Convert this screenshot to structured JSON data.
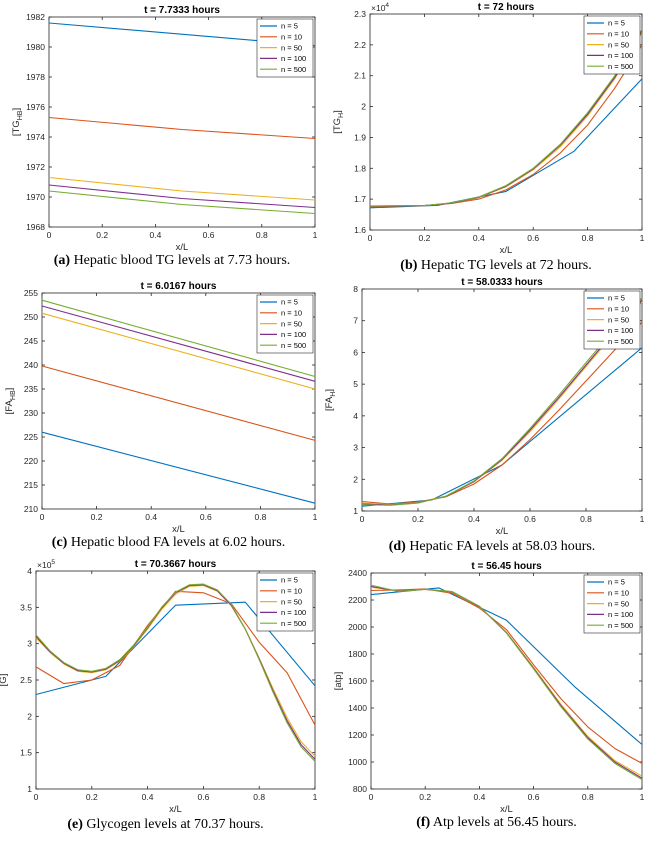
{
  "colors": {
    "n5": "#0072bd",
    "n10": "#d95319",
    "n50": "#edb120",
    "n100": "#7e2f8e",
    "n500": "#77ac30"
  },
  "chart_data": [
    {
      "id": "a",
      "type": "line",
      "title": "t = 7.7333 hours",
      "xlabel": "x/L",
      "ylabel": "[TG_HB]",
      "ylabel_main": "[TG",
      "ylabel_sub": "HB",
      "xlim": [
        0,
        1
      ],
      "ylim": [
        1968,
        1982
      ],
      "xticks": [
        "0",
        "0.2",
        "0.4",
        "0.6",
        "0.8",
        "1"
      ],
      "yticks": [
        "1968",
        "1970",
        "1972",
        "1974",
        "1976",
        "1978",
        "1980",
        "1982"
      ],
      "exponent": "",
      "caption_label": "(a)",
      "caption_text": " Hepatic blood TG levels at 7.73 hours.",
      "legend": [
        "n = 5",
        "n = 10",
        "n = 50",
        "n = 100",
        "n = 500"
      ],
      "series": [
        {
          "name": "n = 5",
          "x": [
            0,
            1
          ],
          "y": [
            1981.6,
            1980.1
          ]
        },
        {
          "name": "n = 10",
          "x": [
            0,
            0.5,
            1
          ],
          "y": [
            1975.3,
            1974.5,
            1973.9
          ]
        },
        {
          "name": "n = 50",
          "x": [
            0,
            0.5,
            1
          ],
          "y": [
            1971.3,
            1970.4,
            1969.8
          ]
        },
        {
          "name": "n = 100",
          "x": [
            0,
            0.5,
            1
          ],
          "y": [
            1970.8,
            1969.9,
            1969.3
          ]
        },
        {
          "name": "n = 500",
          "x": [
            0,
            0.5,
            1
          ],
          "y": [
            1970.4,
            1969.5,
            1968.9
          ]
        }
      ]
    },
    {
      "id": "b",
      "type": "line",
      "title": "t = 72 hours",
      "xlabel": "x/L",
      "ylabel": "[TG_H]",
      "ylabel_main": "[TG",
      "ylabel_sub": "H",
      "xlim": [
        0,
        1
      ],
      "ylim": [
        1.6,
        2.3
      ],
      "xticks": [
        "0",
        "0.2",
        "0.4",
        "0.6",
        "0.8",
        "1"
      ],
      "yticks": [
        "1.6",
        "1.7",
        "1.8",
        "1.9",
        "2",
        "2.1",
        "2.2",
        "2.3"
      ],
      "exponent": "×10",
      "exponent_power": "4",
      "caption_label": "(b)",
      "caption_text": " Hepatic TG levels at 72 hours.",
      "legend": [
        "n = 5",
        "n = 10",
        "n = 50",
        "n = 100",
        "n = 500"
      ],
      "series": [
        {
          "name": "n = 5",
          "x": [
            0,
            0.25,
            0.5,
            0.75,
            1
          ],
          "y": [
            1.672,
            1.68,
            1.725,
            1.855,
            2.09
          ]
        },
        {
          "name": "n = 10",
          "x": [
            0,
            0.2,
            0.3,
            0.4,
            0.5,
            0.6,
            0.7,
            0.8,
            0.9,
            1
          ],
          "y": [
            1.675,
            1.679,
            1.686,
            1.7,
            1.73,
            1.78,
            1.85,
            1.94,
            2.06,
            2.2
          ]
        },
        {
          "name": "n = 50",
          "x": [
            0,
            0.2,
            0.3,
            0.4,
            0.5,
            0.6,
            0.7,
            0.8,
            0.9,
            1
          ],
          "y": [
            1.677,
            1.679,
            1.687,
            1.705,
            1.74,
            1.795,
            1.87,
            1.97,
            2.09,
            2.24
          ]
        },
        {
          "name": "n = 100",
          "x": [
            0,
            0.2,
            0.3,
            0.4,
            0.5,
            0.6,
            0.7,
            0.8,
            0.9,
            1
          ],
          "y": [
            1.677,
            1.679,
            1.687,
            1.706,
            1.742,
            1.798,
            1.875,
            1.975,
            2.095,
            2.245
          ]
        },
        {
          "name": "n = 500",
          "x": [
            0,
            0.2,
            0.3,
            0.4,
            0.5,
            0.6,
            0.7,
            0.8,
            0.9,
            1
          ],
          "y": [
            1.678,
            1.679,
            1.688,
            1.707,
            1.744,
            1.8,
            1.878,
            1.98,
            2.1,
            2.25
          ]
        }
      ]
    },
    {
      "id": "c",
      "type": "line",
      "title": "t = 6.0167 hours",
      "xlabel": "x/L",
      "ylabel": "[FA_HB]",
      "ylabel_main": "[FA",
      "ylabel_sub": "HB",
      "xlim": [
        0,
        1
      ],
      "ylim": [
        210,
        255
      ],
      "xticks": [
        "0",
        "0.2",
        "0.4",
        "0.6",
        "0.8",
        "1"
      ],
      "yticks": [
        "210",
        "215",
        "220",
        "225",
        "230",
        "235",
        "240",
        "245",
        "250",
        "255"
      ],
      "exponent": "",
      "caption_label": "(c)",
      "caption_text": " Hepatic blood FA levels at 6.02 hours.",
      "legend": [
        "n = 5",
        "n = 10",
        "n = 50",
        "n = 100",
        "n = 500"
      ],
      "series": [
        {
          "name": "n = 5",
          "x": [
            0,
            1
          ],
          "y": [
            226,
            211.2
          ]
        },
        {
          "name": "n = 10",
          "x": [
            0,
            1
          ],
          "y": [
            239.8,
            224.3
          ]
        },
        {
          "name": "n = 50",
          "x": [
            0,
            1
          ],
          "y": [
            250.8,
            235.0
          ]
        },
        {
          "name": "n = 100",
          "x": [
            0,
            1
          ],
          "y": [
            252.3,
            236.6
          ]
        },
        {
          "name": "n = 500",
          "x": [
            0,
            1
          ],
          "y": [
            253.5,
            237.6
          ]
        }
      ]
    },
    {
      "id": "d",
      "type": "line",
      "title": "t = 58.0333 hours",
      "xlabel": "x/L",
      "ylabel": "[FA_H]",
      "ylabel_main": "[FA",
      "ylabel_sub": "H",
      "xlim": [
        0,
        1
      ],
      "ylim": [
        1,
        8
      ],
      "xticks": [
        "0",
        "0.2",
        "0.4",
        "0.6",
        "0.8",
        "1"
      ],
      "yticks": [
        "1",
        "2",
        "3",
        "4",
        "5",
        "6",
        "7",
        "8"
      ],
      "exponent": "",
      "caption_label": "(d)",
      "caption_text": " Hepatic FA levels at 58.03 hours.",
      "legend": [
        "n = 5",
        "n = 10",
        "n = 50",
        "n = 100",
        "n = 500"
      ],
      "series": [
        {
          "name": "n = 5",
          "x": [
            0,
            0.25,
            0.5,
            0.75,
            1
          ],
          "y": [
            1.15,
            1.35,
            2.45,
            4.3,
            6.15
          ]
        },
        {
          "name": "n = 10",
          "x": [
            0,
            0.1,
            0.2,
            0.3,
            0.4,
            0.5,
            0.6,
            0.7,
            0.8,
            0.9,
            1
          ],
          "y": [
            1.3,
            1.22,
            1.28,
            1.45,
            1.85,
            2.45,
            3.25,
            4.15,
            5.1,
            6.05,
            6.95
          ]
        },
        {
          "name": "n = 50",
          "x": [
            0,
            0.1,
            0.2,
            0.3,
            0.4,
            0.5,
            0.6,
            0.7,
            0.8,
            0.9,
            1
          ],
          "y": [
            1.25,
            1.2,
            1.27,
            1.47,
            1.92,
            2.6,
            3.5,
            4.5,
            5.55,
            6.6,
            7.6
          ]
        },
        {
          "name": "n = 100",
          "x": [
            0,
            0.1,
            0.2,
            0.3,
            0.4,
            0.5,
            0.6,
            0.7,
            0.8,
            0.9,
            1
          ],
          "y": [
            1.22,
            1.19,
            1.26,
            1.46,
            1.93,
            2.62,
            3.55,
            4.55,
            5.6,
            6.65,
            7.65
          ]
        },
        {
          "name": "n = 500",
          "x": [
            0,
            0.1,
            0.2,
            0.3,
            0.4,
            0.5,
            0.6,
            0.7,
            0.8,
            0.9,
            1
          ],
          "y": [
            1.2,
            1.18,
            1.25,
            1.47,
            1.95,
            2.65,
            3.6,
            4.62,
            5.68,
            6.72,
            7.72
          ]
        }
      ]
    },
    {
      "id": "e",
      "type": "line",
      "title": "t = 70.3667 hours",
      "xlabel": "x/L",
      "ylabel": "[G]",
      "ylabel_main": "[G]",
      "ylabel_sub": "",
      "xlim": [
        0,
        1
      ],
      "ylim": [
        1,
        4
      ],
      "xticks": [
        "0",
        "0.2",
        "0.4",
        "0.6",
        "0.8",
        "1"
      ],
      "yticks": [
        "1",
        "1.5",
        "2",
        "2.5",
        "3",
        "3.5",
        "4"
      ],
      "exponent": "×10",
      "exponent_power": "5",
      "caption_label": "(e)",
      "caption_text": " Glycogen levels at 70.37 hours.",
      "legend": [
        "n = 5",
        "n = 10",
        "n = 50",
        "n = 100",
        "n = 500"
      ],
      "series": [
        {
          "name": "n = 5",
          "x": [
            0,
            0.25,
            0.5,
            0.75,
            1
          ],
          "y": [
            2.3,
            2.55,
            3.53,
            3.57,
            2.42
          ]
        },
        {
          "name": "n = 10",
          "x": [
            0,
            0.1,
            0.2,
            0.3,
            0.4,
            0.5,
            0.6,
            0.7,
            0.8,
            0.9,
            1
          ],
          "y": [
            2.68,
            2.45,
            2.5,
            2.7,
            3.25,
            3.72,
            3.7,
            3.55,
            3.02,
            2.6,
            1.88
          ]
        },
        {
          "name": "n = 50",
          "x": [
            0,
            0.05,
            0.1,
            0.15,
            0.2,
            0.25,
            0.3,
            0.35,
            0.4,
            0.45,
            0.5,
            0.55,
            0.6,
            0.65,
            0.7,
            0.75,
            0.8,
            0.85,
            0.9,
            0.95,
            1
          ],
          "y": [
            3.08,
            2.88,
            2.72,
            2.62,
            2.6,
            2.64,
            2.76,
            2.96,
            3.2,
            3.47,
            3.68,
            3.79,
            3.8,
            3.72,
            3.52,
            3.2,
            2.8,
            2.38,
            1.98,
            1.65,
            1.45
          ]
        },
        {
          "name": "n = 100",
          "x": [
            0,
            0.05,
            0.1,
            0.15,
            0.2,
            0.25,
            0.3,
            0.35,
            0.4,
            0.45,
            0.5,
            0.55,
            0.6,
            0.65,
            0.7,
            0.75,
            0.8,
            0.85,
            0.9,
            0.95,
            1
          ],
          "y": [
            3.1,
            2.89,
            2.73,
            2.63,
            2.61,
            2.65,
            2.77,
            2.97,
            3.22,
            3.49,
            3.7,
            3.8,
            3.81,
            3.73,
            3.53,
            3.2,
            2.79,
            2.35,
            1.94,
            1.61,
            1.41
          ]
        },
        {
          "name": "n = 500",
          "x": [
            0,
            0.05,
            0.1,
            0.15,
            0.2,
            0.25,
            0.3,
            0.35,
            0.4,
            0.45,
            0.5,
            0.55,
            0.6,
            0.65,
            0.7,
            0.75,
            0.8,
            0.85,
            0.9,
            0.95,
            1
          ],
          "y": [
            3.12,
            2.9,
            2.74,
            2.64,
            2.62,
            2.66,
            2.78,
            2.98,
            3.23,
            3.5,
            3.71,
            3.81,
            3.82,
            3.74,
            3.54,
            3.2,
            2.78,
            2.33,
            1.91,
            1.58,
            1.38
          ]
        }
      ]
    },
    {
      "id": "f",
      "type": "line",
      "title": "t = 56.45 hours",
      "xlabel": "x/L",
      "ylabel": "[atp]",
      "ylabel_main": "[atp]",
      "ylabel_sub": "",
      "xlim": [
        0,
        1
      ],
      "ylim": [
        800,
        2400
      ],
      "xticks": [
        "0",
        "0.2",
        "0.4",
        "0.6",
        "0.8",
        "1"
      ],
      "yticks": [
        "800",
        "1000",
        "1200",
        "1400",
        "1600",
        "1800",
        "2000",
        "2200",
        "2400"
      ],
      "exponent": "",
      "caption_label": "(f)",
      "caption_text": " Atp levels at 56.45 hours.",
      "legend": [
        "n = 5",
        "n = 10",
        "n = 50",
        "n = 100",
        "n = 500"
      ],
      "series": [
        {
          "name": "n = 5",
          "x": [
            0,
            0.25,
            0.5,
            0.75,
            1
          ],
          "y": [
            2240,
            2290,
            2050,
            1560,
            1130
          ]
        },
        {
          "name": "n = 10",
          "x": [
            0,
            0.1,
            0.2,
            0.3,
            0.4,
            0.5,
            0.6,
            0.7,
            0.8,
            0.9,
            1
          ],
          "y": [
            2270,
            2275,
            2282,
            2250,
            2140,
            1980,
            1720,
            1470,
            1260,
            1100,
            990
          ]
        },
        {
          "name": "n = 50",
          "x": [
            0,
            0.1,
            0.2,
            0.3,
            0.4,
            0.5,
            0.6,
            0.7,
            0.8,
            0.9,
            1
          ],
          "y": [
            2295,
            2268,
            2278,
            2258,
            2150,
            1960,
            1700,
            1430,
            1190,
            1010,
            895
          ]
        },
        {
          "name": "n = 100",
          "x": [
            0,
            0.1,
            0.2,
            0.3,
            0.4,
            0.5,
            0.6,
            0.7,
            0.8,
            0.9,
            1
          ],
          "y": [
            2300,
            2266,
            2279,
            2260,
            2152,
            1958,
            1695,
            1420,
            1180,
            1000,
            880
          ]
        },
        {
          "name": "n = 500",
          "x": [
            0,
            0.1,
            0.2,
            0.3,
            0.4,
            0.5,
            0.6,
            0.7,
            0.8,
            0.9,
            1
          ],
          "y": [
            2310,
            2264,
            2280,
            2262,
            2154,
            1955,
            1690,
            1412,
            1170,
            990,
            870
          ]
        }
      ]
    }
  ]
}
